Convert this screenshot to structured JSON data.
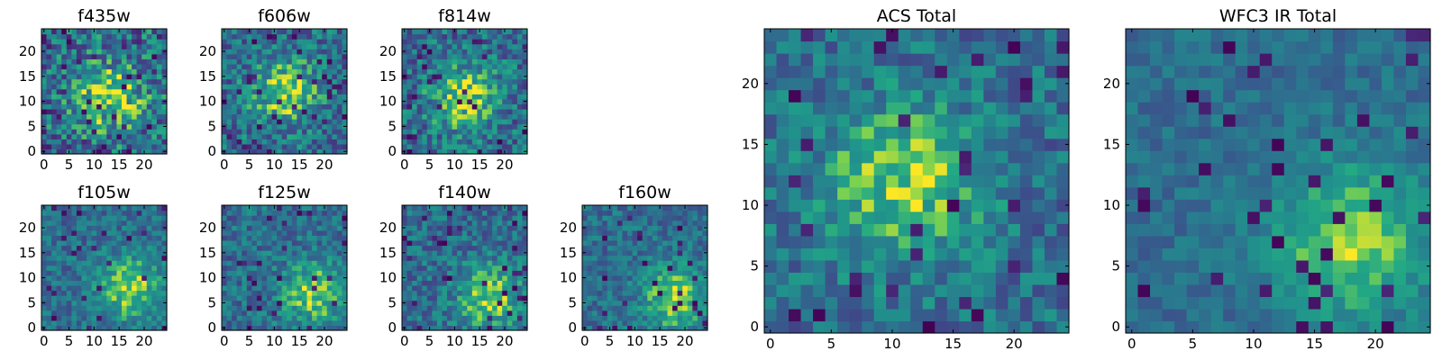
{
  "chart_data": [
    {
      "type": "heatmap",
      "title": "f435w",
      "xlim": [
        -0.5,
        24.5
      ],
      "ylim": [
        -0.5,
        24.5
      ],
      "xticks": [
        0,
        5,
        10,
        15,
        20
      ],
      "yticks": [
        0,
        5,
        10,
        15,
        20
      ],
      "colormap": "viridis",
      "peak": [
        13,
        11
      ],
      "noise": 0.55,
      "seed": 11
    },
    {
      "type": "heatmap",
      "title": "f606w",
      "xlim": [
        -0.5,
        24.5
      ],
      "ylim": [
        -0.5,
        24.5
      ],
      "xticks": [
        0,
        5,
        10,
        15,
        20
      ],
      "yticks": [
        0,
        5,
        10,
        15,
        20
      ],
      "colormap": "viridis",
      "peak": [
        12,
        12
      ],
      "noise": 0.45,
      "seed": 23
    },
    {
      "type": "heatmap",
      "title": "f814w",
      "xlim": [
        -0.5,
        24.5
      ],
      "ylim": [
        -0.5,
        24.5
      ],
      "xticks": [
        0,
        5,
        10,
        15,
        20
      ],
      "yticks": [
        0,
        5,
        10,
        15,
        20
      ],
      "colormap": "viridis",
      "peak": [
        12,
        11
      ],
      "noise": 0.45,
      "seed": 37
    },
    {
      "type": "heatmap",
      "title": "f105w",
      "xlim": [
        -0.5,
        24.5
      ],
      "ylim": [
        -0.5,
        24.5
      ],
      "xticks": [
        0,
        5,
        10,
        15,
        20
      ],
      "yticks": [
        0,
        5,
        10,
        15,
        20
      ],
      "colormap": "viridis",
      "peak": [
        17,
        8
      ],
      "noise": 0.3,
      "seed": 41
    },
    {
      "type": "heatmap",
      "title": "f125w",
      "xlim": [
        -0.5,
        24.5
      ],
      "ylim": [
        -0.5,
        24.5
      ],
      "xticks": [
        0,
        5,
        10,
        15,
        20
      ],
      "yticks": [
        0,
        5,
        10,
        15,
        20
      ],
      "colormap": "viridis",
      "peak": [
        18,
        7
      ],
      "noise": 0.35,
      "seed": 53
    },
    {
      "type": "heatmap",
      "title": "f140w",
      "xlim": [
        -0.5,
        24.5
      ],
      "ylim": [
        -0.5,
        24.5
      ],
      "xticks": [
        0,
        5,
        10,
        15,
        20
      ],
      "yticks": [
        0,
        5,
        10,
        15,
        20
      ],
      "colormap": "viridis",
      "peak": [
        17,
        6
      ],
      "noise": 0.35,
      "seed": 67
    },
    {
      "type": "heatmap",
      "title": "f160w",
      "xlim": [
        -0.5,
        24.5
      ],
      "ylim": [
        -0.5,
        24.5
      ],
      "xticks": [
        0,
        5,
        10,
        15,
        20
      ],
      "yticks": [
        0,
        5,
        10,
        15,
        20
      ],
      "colormap": "viridis",
      "peak": [
        18,
        6
      ],
      "noise": 0.3,
      "seed": 79
    },
    {
      "type": "heatmap",
      "title": "ACS Total",
      "xlim": [
        -0.5,
        24.5
      ],
      "ylim": [
        -0.5,
        24.5
      ],
      "xticks": [
        0,
        5,
        10,
        15,
        20
      ],
      "yticks": [
        0,
        5,
        10,
        15,
        20
      ],
      "colormap": "viridis",
      "peak": [
        11,
        12
      ],
      "noise": 0.35,
      "seed": 97
    },
    {
      "type": "heatmap",
      "title": "WFC3 IR Total",
      "xlim": [
        -0.5,
        24.5
      ],
      "ylim": [
        -0.5,
        24.5
      ],
      "xticks": [
        0,
        5,
        10,
        15,
        20
      ],
      "yticks": [
        0,
        5,
        10,
        15,
        20
      ],
      "colormap": "viridis",
      "peak": [
        18,
        7
      ],
      "noise": 0.2,
      "seed": 131
    }
  ]
}
